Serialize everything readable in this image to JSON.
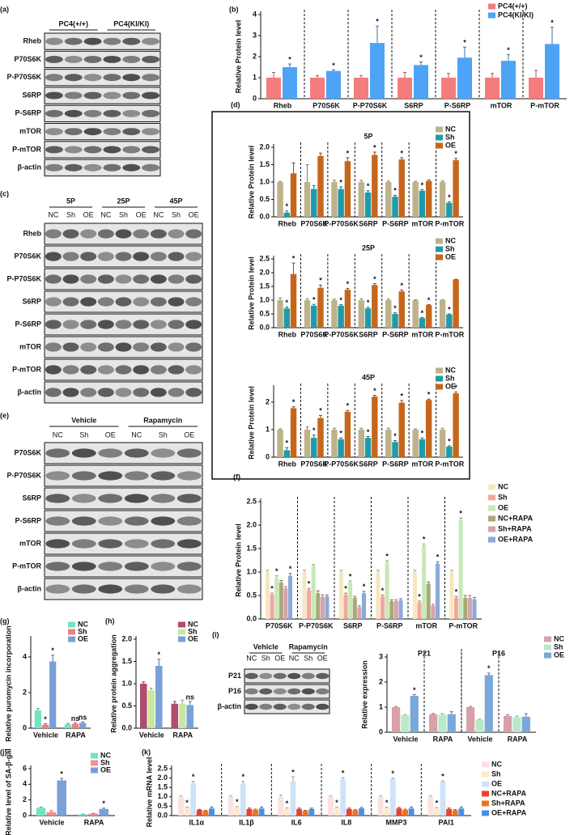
{
  "blots": [
    {
      "label": "(a)",
      "groups": [
        "PC4(+/+)",
        "PC4(KI/KI)"
      ],
      "rows": [
        "Rheb",
        "P70S6K",
        "P-P70S6K",
        "S6RP",
        "P-S6RP",
        "mTOR",
        "P-mTOR",
        "β-actin"
      ]
    },
    {
      "label": "(c)",
      "groups": [
        "5P",
        "25P",
        "45P"
      ],
      "lanes": [
        "NC",
        "Sh",
        "OE",
        "NC",
        "Sh",
        "OE",
        "NC",
        "Sh",
        "OE"
      ],
      "rows": [
        "Rheb",
        "P70S6K",
        "P-P70S6K",
        "S6RP",
        "P-S6RP",
        "mTOR",
        "P-mTOR",
        "β-actin"
      ]
    },
    {
      "label": "(e)",
      "groups": [
        "Vehicle",
        "Rapamycin"
      ],
      "lanes": [
        "NC",
        "Sh",
        "OE",
        "NC",
        "Sh",
        "OE"
      ],
      "rows": [
        "P70S6K",
        "P-P70S6K",
        "S6RP",
        "P-S6RP",
        "mTOR",
        "P-mTOR",
        "β-actin"
      ]
    },
    {
      "label": "(i)",
      "groups": [
        "Vehicle",
        "Rapamycin"
      ],
      "lanes": [
        "NC",
        "Sh",
        "OE",
        "NC",
        "Sh",
        "OE"
      ],
      "rows": [
        "P21",
        "P16",
        "β-actin"
      ]
    }
  ],
  "chart_data": [
    {
      "type": "bar",
      "label": "(b)",
      "y_label": "Relative Protein level",
      "separators": true,
      "legend": "upper right",
      "categories": [
        "Rheb",
        "P70S6K",
        "P-P70S6K",
        "S6RP",
        "P-S6RP",
        "mTOR",
        "P-mTOR"
      ],
      "ylim": [
        0,
        4
      ],
      "yticks": [
        0,
        1,
        2,
        3,
        4
      ],
      "series": [
        {
          "name": "PC4(+/+)",
          "color": "#f47c7c",
          "values": [
            1,
            1,
            1,
            1,
            1,
            1,
            1
          ],
          "errors": [
            0.25,
            0.1,
            0.1,
            0.25,
            0.2,
            0.2,
            0.35
          ]
        },
        {
          "name": "PC4(KI/KI)",
          "color": "#4da3f5",
          "values": [
            1.5,
            1.32,
            2.65,
            1.6,
            1.95,
            1.8,
            2.6
          ],
          "errors": [
            0.15,
            0.05,
            0.8,
            0.15,
            0.5,
            0.3,
            0.8
          ],
          "marks": [
            "*",
            "*",
            "*",
            "*",
            "*",
            "*",
            "*"
          ]
        }
      ]
    },
    {
      "type": "bar",
      "label": "(d)",
      "title": "5P",
      "y_label": "Relative Protein level",
      "separators": true,
      "legend": "upper right",
      "categories": [
        "Rheb",
        "P70S6K",
        "P-P70S6K",
        "S6RP",
        "P-S6RP",
        "mTOR",
        "P-mTOR"
      ],
      "ylim": [
        0,
        2
      ],
      "yticks": [
        {
          "value": 0,
          "label": "0.0"
        },
        0.5,
        {
          "value": 1,
          "label": "1.0"
        },
        1.5,
        {
          "value": 2,
          "label": "2.0"
        }
      ],
      "series": [
        {
          "name": "NC",
          "color": "#bdb28a",
          "values": [
            1,
            1,
            1,
            1,
            1,
            1,
            1
          ],
          "errors": [
            0.02,
            0.5,
            0.05,
            0.05,
            0.03,
            0.02,
            0.03
          ]
        },
        {
          "name": "Sh",
          "color": "#1f9aa8",
          "values": [
            0.12,
            0.8,
            0.8,
            0.7,
            0.58,
            0.75,
            0.4
          ],
          "errors": [
            0.05,
            0.1,
            0.06,
            0.05,
            0.04,
            0.03,
            0.03
          ],
          "marks": [
            "*",
            null,
            "*",
            "*",
            "*",
            "*",
            "*"
          ]
        },
        {
          "name": "OE",
          "color": "#c6661c",
          "values": [
            1.25,
            1.75,
            1.6,
            1.78,
            1.65,
            1.03,
            1.63
          ],
          "errors": [
            0.3,
            0.08,
            0.1,
            0.08,
            0.05,
            0.03,
            0.05
          ],
          "marks": [
            null,
            null,
            "*",
            "*",
            "*",
            null,
            "*"
          ]
        }
      ]
    },
    {
      "type": "bar",
      "title": "25P",
      "y_label": "Relative Protein level",
      "separators": true,
      "legend": "upper right",
      "categories": [
        "Rheb",
        "P70S6K",
        "P-P70S6K",
        "S6RP",
        "P-S6RP",
        "mTOR",
        "P-mTOR"
      ],
      "ylim": [
        0,
        2.5
      ],
      "yticks": [
        {
          "value": 0,
          "label": "0.0"
        },
        0.5,
        {
          "value": 1,
          "label": "1.0"
        },
        1.5,
        {
          "value": 2,
          "label": "2.0"
        },
        2.5
      ],
      "series": [
        {
          "name": "NC",
          "color": "#bdb28a",
          "values": [
            1,
            1,
            1,
            1,
            1,
            1,
            1
          ],
          "errors": [
            0.08,
            0.05,
            0.04,
            0.05,
            0.04,
            0.02,
            0.02
          ]
        },
        {
          "name": "Sh",
          "color": "#1f9aa8",
          "values": [
            0.7,
            0.8,
            0.8,
            0.7,
            0.5,
            0.35,
            0.48
          ],
          "errors": [
            0.05,
            0.05,
            0.04,
            0.04,
            0.04,
            0.02,
            0.02
          ],
          "marks": [
            "*",
            "*",
            "*",
            "*",
            "*",
            "*",
            "*"
          ]
        },
        {
          "name": "OE",
          "color": "#c6661c",
          "values": [
            1.95,
            1.45,
            1.38,
            1.55,
            1.32,
            0.82,
            1.75
          ],
          "errors": [
            0.4,
            0.1,
            0.05,
            0.05,
            0.05,
            0.02,
            0.01
          ],
          "marks": [
            "*",
            "*",
            "*",
            "*",
            "*",
            "*",
            null
          ]
        }
      ]
    },
    {
      "type": "bar",
      "title": "45P",
      "y_label": "Relative Protein level",
      "separators": true,
      "legend": "upper right",
      "categories": [
        "Rheb",
        "P70S6K",
        "P-P70S6K",
        "S6RP",
        "P-S6RP",
        "mTOR",
        "P-mTOR"
      ],
      "ylim": [
        0,
        2.5
      ],
      "yticks": [
        0,
        1,
        2
      ],
      "series": [
        {
          "name": "NC",
          "color": "#bdb28a",
          "values": [
            1,
            1,
            1,
            1,
            1,
            1,
            1
          ],
          "errors": [
            0.03,
            0.1,
            0.05,
            0.05,
            0.05,
            0.03,
            0.05
          ]
        },
        {
          "name": "Sh",
          "color": "#1f9aa8",
          "values": [
            0.25,
            0.7,
            0.65,
            0.7,
            0.55,
            0.65,
            0.38
          ],
          "errors": [
            0.1,
            0.1,
            0.05,
            0.05,
            0.05,
            0.05,
            0.03
          ],
          "marks": [
            "*",
            "*",
            "*",
            "*",
            "*",
            "*",
            "*"
          ]
        },
        {
          "name": "OE",
          "color": "#c6661c",
          "values": [
            1.78,
            1.42,
            1.65,
            2.2,
            1.98,
            2.08,
            2.32
          ],
          "errors": [
            0.05,
            0.1,
            0.05,
            0.05,
            0.08,
            0.03,
            0.05
          ],
          "marks": [
            "*",
            "*",
            "*",
            "*",
            "*",
            "*",
            "*"
          ]
        }
      ]
    },
    {
      "type": "bar",
      "label": "(f)",
      "y_label": "Relative Protein level",
      "separators": true,
      "legend": "right",
      "categories": [
        "P70S6K",
        "P-P70S6K",
        "S6RP",
        "P-S6RP",
        "mTOR",
        "P-mTOR"
      ],
      "ylim": [
        0,
        2.5
      ],
      "yticks": [
        {
          "value": 0,
          "label": "0.0"
        },
        0.5,
        {
          "value": 1,
          "label": "1.0"
        },
        1.5,
        {
          "value": 2,
          "label": "2.0"
        },
        2.5
      ],
      "series": [
        {
          "name": "NC",
          "color": "#f6e7c1",
          "values": [
            1,
            1,
            1,
            1,
            1,
            1
          ],
          "errors": [
            0.04,
            0.04,
            0.04,
            0.04,
            0.04,
            0.04
          ]
        },
        {
          "name": "Sh",
          "color": "#f4a6a0",
          "values": [
            0.52,
            0.62,
            0.52,
            0.48,
            0.35,
            0.45
          ],
          "errors": [
            0.03,
            0.03,
            0.03,
            0.03,
            0.03,
            0.03
          ],
          "marks": [
            "*",
            "*",
            "*",
            "*",
            "*",
            "*"
          ]
        },
        {
          "name": "OE",
          "color": "#c7e9b8",
          "values": [
            0.88,
            1.12,
            0.78,
            1.2,
            1.55,
            2.12
          ],
          "errors": [
            0.04,
            0.04,
            0.03,
            0.04,
            0.05,
            0.03
          ],
          "marks": [
            "*",
            null,
            "*",
            "*",
            "*",
            "*"
          ]
        },
        {
          "name": "NC+RAPA",
          "color": "#a9a878",
          "values": [
            0.78,
            0.55,
            0.45,
            0.38,
            0.75,
            0.45
          ],
          "errors": [
            0.04,
            0.05,
            0.03,
            0.03,
            0.04,
            0.05
          ]
        },
        {
          "name": "Sh+RAPA",
          "color": "#d6a4a9",
          "values": [
            0.65,
            0.47,
            0.25,
            0.38,
            0.28,
            0.45
          ],
          "errors": [
            0.04,
            0.04,
            0.03,
            0.03,
            0.03,
            0.05
          ]
        },
        {
          "name": "OE+RAPA",
          "color": "#8ea8d8",
          "values": [
            0.92,
            0.48,
            0.55,
            0.4,
            1.18,
            0.42
          ],
          "errors": [
            0.05,
            0.03,
            0.04,
            0.03,
            0.04,
            0.04
          ],
          "marks": [
            "*",
            null,
            "*",
            null,
            "*",
            null
          ]
        }
      ]
    },
    {
      "type": "bar",
      "label": "(g)",
      "y_label": "Relative puromycin incorporation",
      "legend": "upper right",
      "categories": [
        "Vehicle",
        "RAPA"
      ],
      "ylim": [
        0,
        5
      ],
      "yticks": [
        0,
        2,
        4
      ],
      "series": [
        {
          "name": "NC",
          "color": "#74e2c4",
          "values": [
            1,
            0.22
          ],
          "errors": [
            0.1,
            0.05
          ]
        },
        {
          "name": "Sh",
          "color": "#f08080",
          "values": [
            0.2,
            0.25
          ],
          "errors": [
            0.05,
            0.05
          ],
          "marks": [
            "*",
            "ns"
          ]
        },
        {
          "name": "OE",
          "color": "#7aa0d8",
          "values": [
            3.75,
            0.3
          ],
          "errors": [
            0.35,
            0.05
          ],
          "marks": [
            "*",
            "ns"
          ]
        }
      ]
    },
    {
      "type": "bar",
      "label": "(h)",
      "y_label": "Relative protein aggregation",
      "legend": "upper right",
      "categories": [
        "Vehicle",
        "RAPA"
      ],
      "ylim": [
        0,
        2
      ],
      "yticks": [
        {
          "value": 0,
          "label": "0.0"
        },
        0.5,
        {
          "value": 1,
          "label": "1.0"
        },
        1.5,
        {
          "value": 2,
          "label": "2.0"
        }
      ],
      "series": [
        {
          "name": "NC",
          "color": "#b04c6c",
          "values": [
            1,
            0.55
          ],
          "errors": [
            0.04,
            0.05
          ]
        },
        {
          "name": "Sh",
          "color": "#c9e7a1",
          "values": [
            0.85,
            0.55
          ],
          "errors": [
            0.05,
            0.08
          ]
        },
        {
          "name": "OE",
          "color": "#7aa0d8",
          "values": [
            1.4,
            0.52
          ],
          "errors": [
            0.15,
            0.08
          ],
          "marks": [
            "*",
            "ns"
          ]
        }
      ]
    },
    {
      "type": "bar",
      "y_label": "Relative expression",
      "separators": true,
      "legend": "upper right",
      "groups": [
        "P21",
        "P16"
      ],
      "categories": [
        "Vehicle",
        "RAPA",
        "Vehicle",
        "RAPA"
      ],
      "ylim": [
        0,
        3
      ],
      "yticks": [
        0,
        1,
        2,
        3
      ],
      "series": [
        {
          "name": "NC",
          "color": "#d6a1a9",
          "values": [
            1,
            0.72,
            1,
            0.65
          ],
          "errors": [
            0.03,
            0.03,
            0.03,
            0.05
          ]
        },
        {
          "name": "Sh",
          "color": "#b9e9c9",
          "values": [
            0.68,
            0.7,
            0.5,
            0.6
          ],
          "errors": [
            0.02,
            0.04,
            0.02,
            0.04
          ]
        },
        {
          "name": "OE",
          "color": "#7aa8d8",
          "values": [
            1.45,
            0.72,
            2.28,
            0.62
          ],
          "errors": [
            0.05,
            0.1,
            0.08,
            0.12
          ],
          "marks": [
            "*",
            null,
            "*",
            null
          ]
        }
      ]
    },
    {
      "type": "bar",
      "label": "(j)",
      "y_label": "Relative level of SA-β-gal",
      "legend": "upper right",
      "categories": [
        "Vehicle",
        "RAPA"
      ],
      "ylim": [
        0,
        6
      ],
      "yticks": [
        0,
        2,
        4,
        6
      ],
      "series": [
        {
          "name": "NC",
          "color": "#74e2c4",
          "values": [
            1,
            0.15
          ],
          "errors": [
            0.08,
            0.05
          ]
        },
        {
          "name": "Sh",
          "color": "#f09090",
          "values": [
            0.45,
            0.25
          ],
          "errors": [
            0.2,
            0.05
          ]
        },
        {
          "name": "OE",
          "color": "#7aa0d8",
          "values": [
            4.5,
            0.85
          ],
          "errors": [
            0.25,
            0.1
          ],
          "marks": [
            "*",
            "*"
          ]
        }
      ]
    },
    {
      "type": "bar",
      "label": "(k)",
      "y_label": "Relative mRNA level",
      "separators": true,
      "legend": "right",
      "categories": [
        "IL1α",
        "IL1β",
        "IL6",
        "IL8",
        "MMP3",
        "PAI1"
      ],
      "ylim": [
        0,
        2.5
      ],
      "yticks": [
        {
          "value": 0,
          "label": "0.0"
        },
        0.5,
        {
          "value": 1,
          "label": "1.0"
        },
        1.5,
        {
          "value": 2,
          "label": "2.0"
        },
        2.5
      ],
      "series": [
        {
          "name": "NC",
          "color": "#fde0e0",
          "values": [
            1,
            1,
            1,
            1,
            1,
            1
          ],
          "errors": [
            0.05,
            0.05,
            0.1,
            0.05,
            0.05,
            0.05
          ]
        },
        {
          "name": "Sh",
          "color": "#fde8c8",
          "values": [
            0.42,
            0.45,
            0.38,
            0.42,
            0.42,
            0.4
          ],
          "errors": [
            0.03,
            0.03,
            0.03,
            0.03,
            0.03,
            0.03
          ],
          "marks": [
            "*",
            "*",
            "*",
            "*",
            "*",
            "*"
          ]
        },
        {
          "name": "OE",
          "color": "#cfe3f8",
          "values": [
            1.72,
            1.7,
            1.82,
            1.92,
            1.95,
            1.8
          ],
          "errors": [
            0.1,
            0.12,
            0.25,
            0.1,
            0.05,
            0.05
          ],
          "marks": [
            "*",
            "*",
            "*",
            "*",
            "*",
            "*"
          ]
        },
        {
          "name": "NC+RAPA",
          "color": "#e8442c",
          "values": [
            0.3,
            0.35,
            0.35,
            0.35,
            0.38,
            0.35
          ],
          "errors": [
            0.03,
            0.05,
            0.05,
            0.05,
            0.05,
            0.05
          ]
        },
        {
          "name": "Sh+RAPA",
          "color": "#f07020",
          "values": [
            0.25,
            0.3,
            0.25,
            0.28,
            0.3,
            0.28
          ],
          "errors": [
            0.03,
            0.04,
            0.03,
            0.04,
            0.04,
            0.04
          ]
        },
        {
          "name": "OE+RAPA",
          "color": "#4a90e0",
          "values": [
            0.38,
            0.38,
            0.35,
            0.38,
            0.38,
            0.38
          ],
          "errors": [
            0.08,
            0.08,
            0.05,
            0.05,
            0.08,
            0.08
          ]
        }
      ]
    }
  ]
}
